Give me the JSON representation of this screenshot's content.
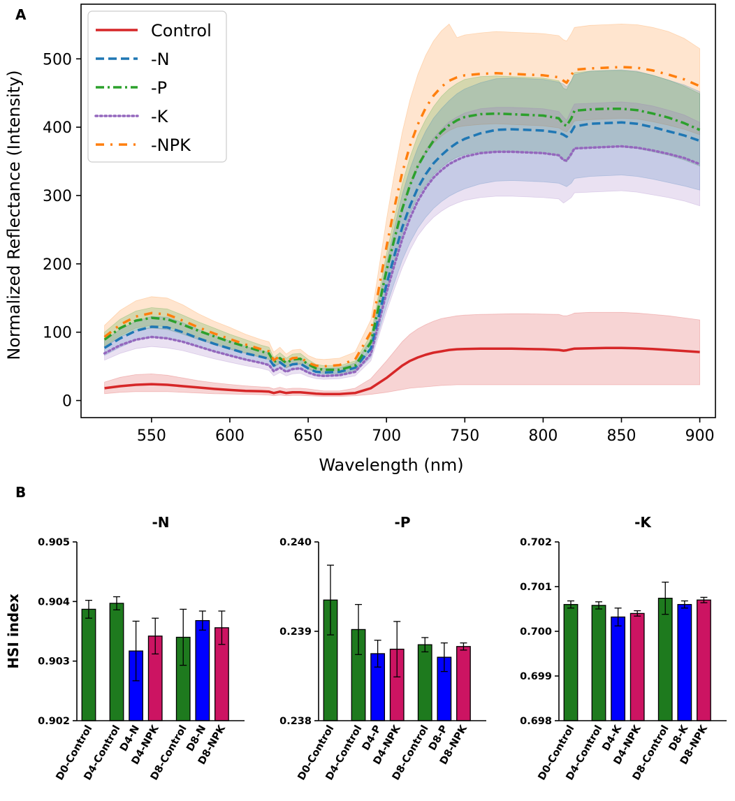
{
  "chart_data": [
    {
      "panel": "A",
      "type": "line",
      "title": "",
      "xlabel": "Wavelength (nm)",
      "ylabel": "Normalized Reflectance (Intensity)",
      "xlim": [
        505,
        910
      ],
      "ylim": [
        -25,
        580
      ],
      "xticks": [
        550,
        600,
        650,
        700,
        750,
        800,
        850,
        900
      ],
      "yticks": [
        0,
        100,
        200,
        300,
        400,
        500
      ],
      "legend_position": "top-left",
      "x": [
        520,
        530,
        540,
        550,
        560,
        570,
        580,
        590,
        600,
        610,
        620,
        625,
        628,
        632,
        636,
        640,
        645,
        650,
        655,
        660,
        670,
        680,
        690,
        700,
        705,
        710,
        715,
        720,
        725,
        730,
        735,
        740,
        745,
        750,
        760,
        770,
        780,
        790,
        800,
        810,
        813,
        815,
        818,
        820,
        830,
        840,
        850,
        860,
        870,
        880,
        890,
        900
      ],
      "series": [
        {
          "name": "Control",
          "color": "#d62728",
          "dash": "solid",
          "values": [
            18,
            21,
            23,
            24,
            23,
            21,
            19,
            17,
            15.5,
            14,
            13.5,
            13,
            11,
            13,
            11,
            12,
            12,
            11,
            10,
            9.5,
            9.5,
            11,
            18,
            33,
            42,
            51,
            58,
            63,
            67,
            70,
            72,
            74,
            75,
            75.5,
            76,
            76,
            76,
            75.5,
            75,
            74,
            73,
            73.5,
            75,
            76,
            76.5,
            77,
            77,
            76.5,
            75.5,
            74,
            72.5,
            71
          ],
          "lower": [
            10,
            12,
            13,
            13,
            13,
            12,
            11,
            10,
            9.5,
            9,
            8.5,
            8,
            7,
            8,
            7,
            7.5,
            7.5,
            7,
            6.5,
            6,
            6,
            7,
            9,
            12,
            14,
            16,
            18,
            19,
            20,
            21,
            22,
            22.5,
            23,
            23,
            23,
            23,
            23,
            23,
            23,
            23,
            23,
            23,
            23,
            23,
            23,
            23,
            23,
            23,
            23,
            23,
            23,
            23
          ],
          "upper": [
            27,
            34,
            38,
            39,
            37,
            33,
            29,
            26,
            23.5,
            21.5,
            20,
            19.5,
            17,
            19.5,
            17,
            18,
            18,
            17,
            15.5,
            14,
            14,
            18,
            32,
            58,
            72,
            86,
            97,
            105,
            111,
            116,
            120,
            122,
            124,
            125,
            126,
            126.5,
            127,
            127,
            126.5,
            126,
            124,
            124,
            126,
            128,
            129,
            129,
            129,
            128,
            126,
            124,
            121,
            118
          ]
        },
        {
          "name": "-N",
          "color": "#1f77b4",
          "dash": "dashed",
          "values": [
            77,
            91,
            102,
            108,
            107,
            100,
            91,
            83,
            76,
            69,
            64,
            61,
            51,
            56,
            49,
            53,
            54,
            47,
            42,
            41,
            42,
            48,
            76,
            170,
            212,
            253,
            285,
            311,
            331,
            347,
            359,
            369,
            377,
            383,
            391,
            396,
            397,
            396,
            395,
            392,
            389,
            386,
            393,
            401,
            405,
            406,
            407,
            405,
            400,
            394,
            388,
            380
          ],
          "lower": [
            66,
            78,
            88,
            93,
            92,
            86,
            78,
            71,
            65,
            59,
            55,
            52,
            43,
            48,
            42,
            45,
            46,
            40,
            36,
            35,
            36,
            41,
            63,
            138,
            172,
            205,
            231,
            252,
            268,
            281,
            291,
            299,
            305,
            310,
            317,
            321,
            322,
            321,
            320,
            318,
            315,
            313,
            318,
            325,
            328,
            329,
            330,
            328,
            324,
            319,
            314,
            308
          ],
          "upper": [
            88,
            104,
            116,
            123,
            122,
            114,
            104,
            95,
            87,
            79,
            73,
            70,
            59,
            64,
            56,
            61,
            62,
            54,
            48,
            47,
            48,
            55,
            89,
            202,
            252,
            301,
            339,
            370,
            394,
            413,
            427,
            439,
            449,
            456,
            465,
            471,
            472,
            471,
            470,
            466,
            463,
            459,
            468,
            477,
            482,
            483,
            484,
            482,
            476,
            469,
            462,
            452
          ]
        },
        {
          "name": "-P",
          "color": "#2ca02c",
          "dash": "dashdot",
          "values": [
            89,
            106,
            117,
            121,
            119,
            111,
            102,
            94,
            86,
            79,
            72,
            69,
            56,
            62,
            55,
            60,
            61,
            53,
            47,
            45,
            45,
            51,
            85,
            190,
            236,
            280,
            315,
            343,
            363,
            380,
            393,
            403,
            410,
            415,
            419,
            420,
            419,
            418,
            417,
            413,
            404,
            402,
            413,
            424,
            426,
            427,
            427,
            425,
            420,
            414,
            406,
            396
          ],
          "lower": [
            78,
            93,
            103,
            106,
            104,
            97,
            89,
            82,
            75,
            69,
            63,
            60,
            49,
            54,
            48,
            52,
            53,
            46,
            41,
            39,
            39,
            44,
            74,
            165,
            205,
            243,
            274,
            298,
            315,
            330,
            341,
            350,
            356,
            360,
            364,
            365,
            364,
            363,
            362,
            358,
            351,
            349,
            358,
            368,
            370,
            371,
            371,
            369,
            364,
            359,
            352,
            343
          ],
          "upper": [
            100,
            119,
            131,
            136,
            134,
            125,
            115,
            106,
            97,
            89,
            81,
            78,
            63,
            70,
            62,
            68,
            69,
            60,
            53,
            51,
            51,
            58,
            96,
            215,
            267,
            317,
            356,
            388,
            411,
            430,
            445,
            456,
            464,
            470,
            474,
            475,
            474,
            473,
            472,
            468,
            457,
            455,
            468,
            480,
            482,
            483,
            483,
            481,
            476,
            469,
            460,
            449
          ]
        },
        {
          "name": "-K",
          "color": "#9467bd",
          "dash": "dotted",
          "values": [
            69,
            81,
            89,
            93,
            91,
            86,
            79,
            72,
            66,
            60,
            55,
            52,
            43,
            48,
            42,
            46,
            47,
            41,
            37,
            36,
            37,
            42,
            68,
            158,
            198,
            236,
            267,
            292,
            311,
            326,
            337,
            346,
            352,
            357,
            362,
            364,
            364,
            363,
            362,
            359,
            352,
            351,
            361,
            369,
            370,
            371,
            372,
            370,
            366,
            361,
            355,
            346
          ],
          "lower": [
            59,
            69,
            76,
            79,
            77,
            73,
            67,
            61,
            56,
            51,
            47,
            44,
            36,
            41,
            36,
            39,
            40,
            35,
            32,
            31,
            32,
            36,
            58,
            130,
            163,
            194,
            220,
            241,
            256,
            268,
            277,
            284,
            289,
            293,
            297,
            299,
            299,
            298,
            297,
            295,
            289,
            292,
            297,
            304,
            305,
            306,
            307,
            305,
            301,
            297,
            292,
            285
          ],
          "upper": [
            79,
            93,
            102,
            107,
            105,
            99,
            91,
            83,
            76,
            69,
            63,
            60,
            50,
            55,
            48,
            53,
            54,
            47,
            42,
            41,
            42,
            48,
            78,
            186,
            233,
            278,
            314,
            343,
            366,
            384,
            397,
            408,
            415,
            421,
            427,
            429,
            429,
            428,
            427,
            423,
            415,
            410,
            425,
            434,
            435,
            436,
            437,
            435,
            431,
            425,
            418,
            407
          ]
        },
        {
          "name": "-NPK",
          "color": "#ff7f0e",
          "dash": "dashdotsparse",
          "values": [
            93,
            111,
            123,
            128,
            126,
            117,
            107,
            98,
            90,
            82,
            75,
            72,
            59,
            65,
            57,
            62,
            63,
            55,
            51,
            50,
            52,
            60,
            100,
            225,
            282,
            333,
            373,
            404,
            428,
            446,
            459,
            468,
            473,
            476,
            478,
            479,
            478,
            477,
            476,
            473,
            468,
            465,
            476,
            484,
            486,
            487,
            488,
            487,
            483,
            477,
            470,
            460
          ],
          "lower": [
            80,
            95,
            106,
            110,
            108,
            100,
            92,
            84,
            77,
            70,
            64,
            61,
            50,
            55,
            48,
            53,
            54,
            47,
            43,
            42,
            44,
            51,
            85,
            190,
            238,
            281,
            315,
            341,
            361,
            376,
            387,
            395,
            400,
            402,
            404,
            405,
            404,
            403,
            402,
            399,
            395,
            393,
            402,
            409,
            411,
            412,
            413,
            412,
            408,
            403,
            397,
            389
          ],
          "upper": [
            110,
            132,
            146,
            152,
            150,
            140,
            127,
            116,
            107,
            97,
            89,
            86,
            71,
            78,
            68,
            74,
            75,
            66,
            61,
            60,
            62,
            71,
            118,
            265,
            332,
            392,
            440,
            477,
            505,
            526,
            541,
            551,
            531,
            535,
            538,
            540,
            539,
            538,
            537,
            534,
            528,
            526,
            537,
            546,
            549,
            550,
            551,
            550,
            546,
            540,
            530,
            515
          ]
        }
      ]
    },
    {
      "panel": "B",
      "type": "bar",
      "title": "-N",
      "ylabel": "HSI index",
      "ylim": [
        0.902,
        0.905
      ],
      "yticks": [
        "0.902",
        "0.903",
        "0.904",
        "0.905"
      ],
      "categories": [
        "D0-Control",
        "D4-Control",
        "D4-N",
        "D4-NPK",
        "D8-Control",
        "D8-N",
        "D8-NPK"
      ],
      "values": [
        0.90387,
        0.90397,
        0.90317,
        0.90342,
        0.9034,
        0.90368,
        0.90356
      ],
      "errors": [
        0.00015,
        0.00011,
        0.0005,
        0.0003,
        0.00047,
        0.00016,
        0.00028
      ],
      "colors": [
        "#1e7a1e",
        "#1e7a1e",
        "#0000ff",
        "#cc1462",
        "#1e7a1e",
        "#0000ff",
        "#cc1462"
      ]
    },
    {
      "panel": "B",
      "type": "bar",
      "title": "-P",
      "ylabel": "",
      "ylim": [
        0.238,
        0.24
      ],
      "yticks": [
        "0.238",
        "0.239",
        "0.240"
      ],
      "categories": [
        "D0-Control",
        "D4-Control",
        "D4-P",
        "D4-NPK",
        "D8-Control",
        "D8-P",
        "D8-NPK"
      ],
      "values": [
        0.23935,
        0.23902,
        0.23875,
        0.2388,
        0.23885,
        0.23871,
        0.23883
      ],
      "errors": [
        0.00039,
        0.00028,
        0.00015,
        0.00031,
        8e-05,
        0.00016,
        4e-05
      ],
      "colors": [
        "#1e7a1e",
        "#1e7a1e",
        "#0000ff",
        "#cc1462",
        "#1e7a1e",
        "#0000ff",
        "#cc1462"
      ]
    },
    {
      "panel": "B",
      "type": "bar",
      "title": "-K",
      "ylabel": "",
      "ylim": [
        0.698,
        0.702
      ],
      "yticks": [
        "0.698",
        "0.699",
        "0.700",
        "0.701",
        "0.702"
      ],
      "categories": [
        "D0-Control",
        "D4-Control",
        "D4-K",
        "D4-NPK",
        "D8-Control",
        "D8-K",
        "D8-NPK"
      ],
      "values": [
        0.7006,
        0.70058,
        0.70032,
        0.7004,
        0.70074,
        0.7006,
        0.7007
      ],
      "errors": [
        8e-05,
        8e-05,
        0.0002,
        6e-05,
        0.00036,
        8e-05,
        6e-05
      ],
      "colors": [
        "#1e7a1e",
        "#1e7a1e",
        "#0000ff",
        "#cc1462",
        "#1e7a1e",
        "#0000ff",
        "#cc1462"
      ]
    }
  ],
  "panel_labels": {
    "a": "A",
    "b": "B"
  }
}
